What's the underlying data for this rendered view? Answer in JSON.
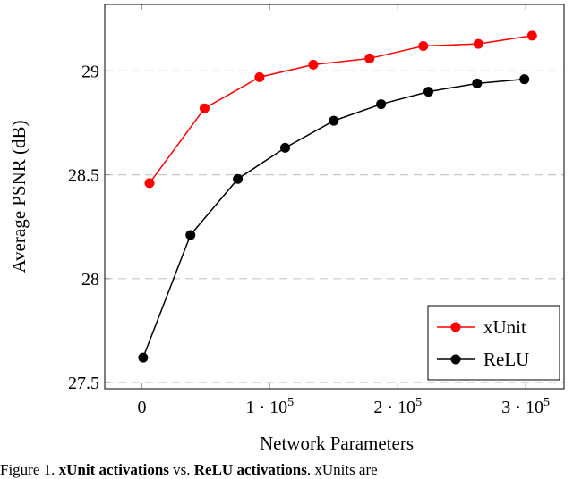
{
  "chart_data": {
    "type": "line",
    "title": "",
    "xlabel": "Network Parameters",
    "ylabel": "Average PSNR (dB)",
    "xlim": [
      -29000,
      330000
    ],
    "ylim": [
      27.47,
      29.32
    ],
    "x_ticks": [
      0,
      100000,
      200000,
      300000
    ],
    "x_tick_labels": [
      "0",
      "1 · 10^5",
      "2 · 10^5",
      "3 · 10^5"
    ],
    "y_ticks": [
      27.5,
      28,
      28.5,
      29
    ],
    "y_tick_labels": [
      "27.5",
      "28",
      "28.5",
      "29"
    ],
    "grid": "horizontal dashed",
    "legend_placement": "bottom-right",
    "series": [
      {
        "name": "xUnit",
        "color": "#ff0000",
        "x": [
          6000,
          49000,
          92000,
          134000,
          178000,
          220000,
          263000,
          305000
        ],
        "y": [
          28.46,
          28.82,
          28.97,
          29.03,
          29.06,
          29.12,
          29.13,
          29.17
        ]
      },
      {
        "name": "ReLU",
        "color": "#000000",
        "x": [
          1000,
          38000,
          75000,
          112000,
          150000,
          187000,
          224000,
          262000,
          299000
        ],
        "y": [
          27.62,
          28.21,
          28.48,
          28.63,
          28.76,
          28.84,
          28.9,
          28.94,
          28.96
        ]
      }
    ]
  },
  "caption": {
    "prefix": "Figure 1. ",
    "bold1": "xUnit activations",
    "mid": " vs. ",
    "bold2": "ReLU activations",
    "rest": ". xUnits are"
  }
}
